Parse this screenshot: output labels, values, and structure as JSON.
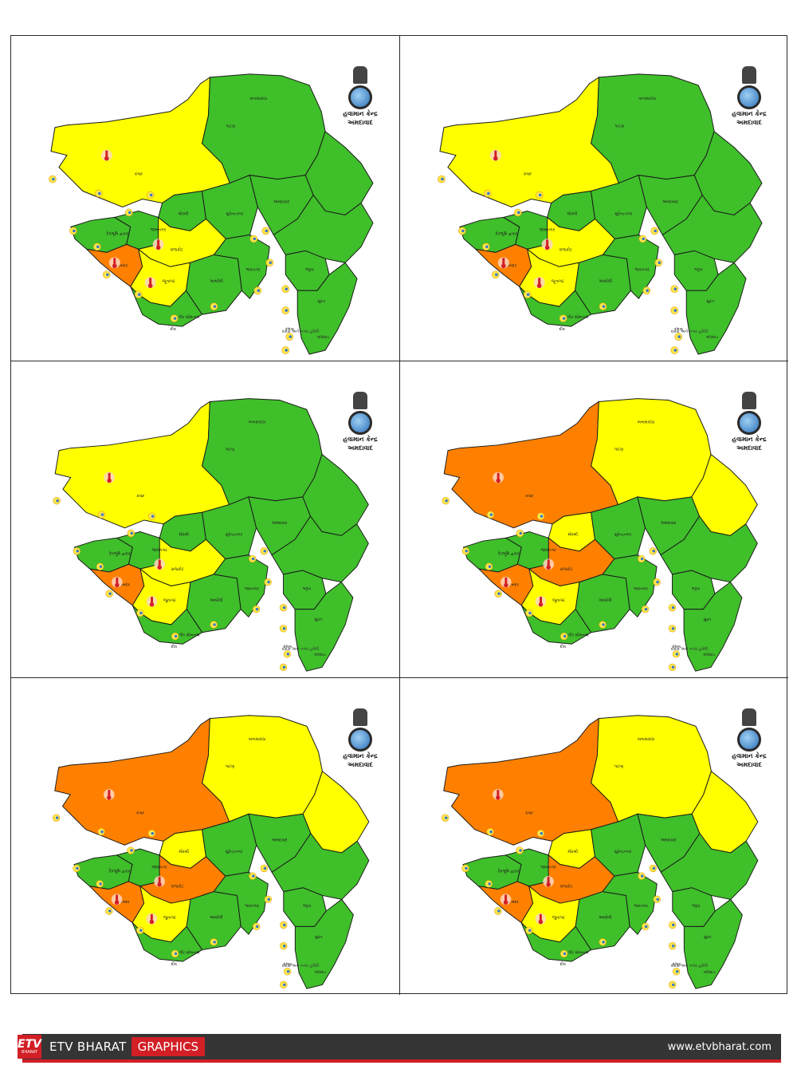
{
  "emblem": {
    "line1": "હવામાન કેન્દ્ર",
    "line2": "અમદાવાદ"
  },
  "note": "દાદરા અને નગર હવેલી",
  "labels": [
    "કચ્છ",
    "બનાસકાંઠા",
    "પાટણ",
    "મોરબી",
    "સુરેન્દ્રનગર",
    "અમદાવાદ",
    "દેવભૂમિ દ્વારકા",
    "જામનગર",
    "રાજકોટ",
    "પોરબંદર",
    "જૂનાગઢ",
    "અમરેલી",
    "ગીર સોમનાથ",
    "ભાવનગર",
    "ભરૂચ",
    "સુરત",
    "વલસાડ",
    "દીવ",
    "દમણ"
  ],
  "colors": {
    "green": "#3fbf2a",
    "yellow": "#ffff00",
    "orange": "#ff8000",
    "border": "#1a1a1a"
  },
  "panels": [
    {
      "name": "day-1",
      "kutch": "yellow",
      "north": "green",
      "northeast": "green",
      "morbi": "green",
      "rajkot": "yellow",
      "porbandar": "orange",
      "junagadh": "yellow",
      "central": "green"
    },
    {
      "name": "day-2",
      "kutch": "yellow",
      "north": "green",
      "northeast": "green",
      "morbi": "green",
      "rajkot": "yellow",
      "porbandar": "orange",
      "junagadh": "yellow",
      "central": "green"
    },
    {
      "name": "day-3",
      "kutch": "yellow",
      "north": "green",
      "northeast": "green",
      "morbi": "green",
      "rajkot": "yellow",
      "porbandar": "orange",
      "junagadh": "yellow",
      "central": "green"
    },
    {
      "name": "day-4",
      "kutch": "orange",
      "north": "yellow",
      "northeast": "yellow",
      "morbi": "yellow",
      "rajkot": "orange",
      "porbandar": "orange",
      "junagadh": "yellow",
      "central": "green"
    },
    {
      "name": "day-5",
      "kutch": "orange",
      "north": "yellow",
      "northeast": "yellow",
      "morbi": "yellow",
      "rajkot": "orange",
      "porbandar": "orange",
      "junagadh": "yellow",
      "central": "green"
    },
    {
      "name": "day-6",
      "kutch": "orange",
      "north": "yellow",
      "northeast": "yellow",
      "morbi": "yellow",
      "rajkot": "orange",
      "porbandar": "orange",
      "junagadh": "yellow",
      "central": "green"
    }
  ],
  "footer": {
    "logo_top": "ETV",
    "logo_bottom": "BHARAT",
    "brand": "ETV BHARAT",
    "tag": "GRAPHICS",
    "site": "www.etvbharat.com"
  }
}
